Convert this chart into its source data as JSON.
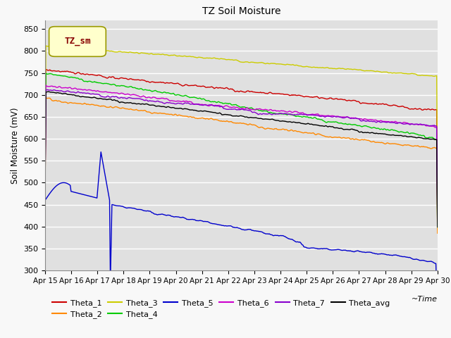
{
  "title": "TZ Soil Moisture",
  "ylabel": "Soil Moisture (mV)",
  "xlabel": "~Time",
  "ylim": [
    300,
    870
  ],
  "yticks": [
    300,
    350,
    400,
    450,
    500,
    550,
    600,
    650,
    700,
    750,
    800,
    850
  ],
  "xtick_labels": [
    "Apr 15",
    "Apr 16",
    "Apr 17",
    "Apr 18",
    "Apr 19",
    "Apr 20",
    "Apr 21",
    "Apr 22",
    "Apr 23",
    "Apr 24",
    "Apr 25",
    "Apr 26",
    "Apr 27",
    "Apr 28",
    "Apr 29",
    "Apr 30"
  ],
  "legend_label": "TZ_sm",
  "legend_box_color": "#ffffcc",
  "legend_box_edge": "#999900",
  "legend_text_color": "#880000",
  "series": {
    "Theta_1": {
      "color": "#cc0000"
    },
    "Theta_2": {
      "color": "#ff8800"
    },
    "Theta_3": {
      "color": "#cccc00"
    },
    "Theta_4": {
      "color": "#00cc00"
    },
    "Theta_5": {
      "color": "#0000cc"
    },
    "Theta_6": {
      "color": "#cc00cc"
    },
    "Theta_7": {
      "color": "#8800cc"
    },
    "Theta_avg": {
      "color": "#000000"
    }
  },
  "plot_bg": "#e0e0e0",
  "fig_bg": "#f8f8f8",
  "grid_color": "#ffffff",
  "n_points": 500
}
